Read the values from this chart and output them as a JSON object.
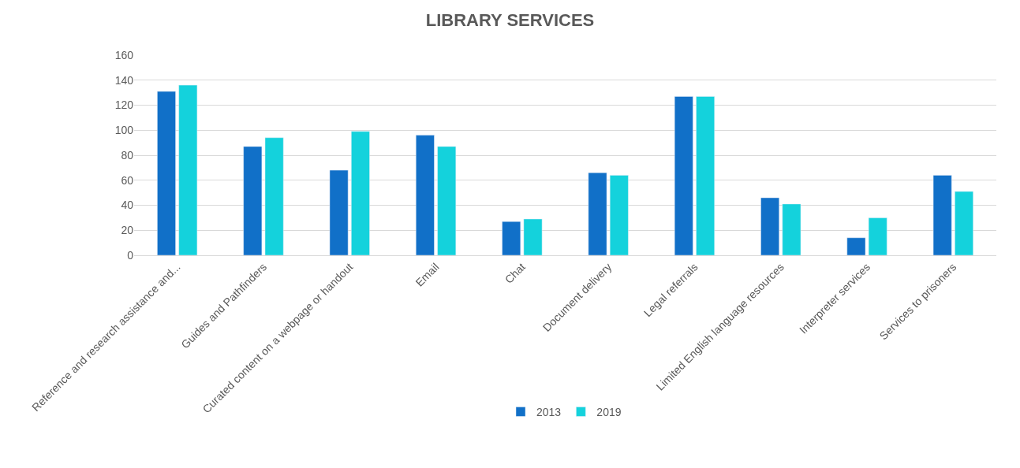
{
  "chart_data": {
    "type": "bar",
    "title": "LIBRARY SERVICES",
    "categories": [
      "Reference and research assistance and...",
      "Guides and Pathfinders",
      "Curated content on a webpage or handout",
      "Email",
      "Chat",
      "Document delivery",
      "Legal referrals",
      "Limited English language resources",
      "Interpreter services",
      "Services to prisoners"
    ],
    "series": [
      {
        "name": "2013",
        "color": "#1170c8",
        "values": [
          131,
          87,
          68,
          96,
          27,
          66,
          127,
          46,
          14,
          64
        ]
      },
      {
        "name": "2019",
        "color": "#14d2dc",
        "values": [
          136,
          94,
          99,
          87,
          29,
          64,
          127,
          41,
          30,
          51
        ]
      }
    ],
    "ylim": [
      0,
      160
    ],
    "yticks": [
      0,
      20,
      40,
      60,
      80,
      100,
      120,
      140,
      160
    ],
    "grid": "y",
    "legend": "bottom"
  }
}
